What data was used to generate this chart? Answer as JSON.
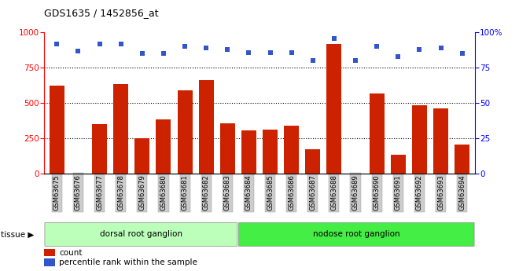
{
  "title": "GDS1635 / 1452856_at",
  "categories": [
    "GSM63675",
    "GSM63676",
    "GSM63677",
    "GSM63678",
    "GSM63679",
    "GSM63680",
    "GSM63681",
    "GSM63682",
    "GSM63683",
    "GSM63684",
    "GSM63685",
    "GSM63686",
    "GSM63687",
    "GSM63688",
    "GSM63689",
    "GSM63690",
    "GSM63691",
    "GSM63692",
    "GSM63693",
    "GSM63694"
  ],
  "counts": [
    625,
    0,
    350,
    635,
    250,
    385,
    590,
    660,
    355,
    305,
    310,
    340,
    170,
    920,
    0,
    565,
    130,
    485,
    460,
    205
  ],
  "percentiles": [
    92,
    87,
    92,
    92,
    85,
    85,
    90,
    89,
    88,
    86,
    86,
    86,
    80,
    96,
    80,
    90,
    83,
    88,
    89,
    85
  ],
  "tissue_groups": [
    {
      "label": "dorsal root ganglion",
      "start": 0,
      "end": 9,
      "color": "#bbffbb"
    },
    {
      "label": "nodose root ganglion",
      "start": 9,
      "end": 20,
      "color": "#44ee44"
    }
  ],
  "ylim_left": [
    0,
    1000
  ],
  "ylim_right": [
    0,
    100
  ],
  "yticks_left": [
    0,
    250,
    500,
    750,
    1000
  ],
  "yticks_right": [
    0,
    25,
    50,
    75,
    100
  ],
  "ytick_labels_right": [
    "0",
    "25",
    "50",
    "75",
    "100%"
  ],
  "bar_color": "#cc2200",
  "dot_color": "#3355cc",
  "grid_color": "#000000",
  "plot_bg": "#ffffff",
  "tissue_label": "tissue",
  "legend_count_label": "count",
  "legend_pct_label": "percentile rank within the sample",
  "xticklabel_bg": "#cccccc"
}
